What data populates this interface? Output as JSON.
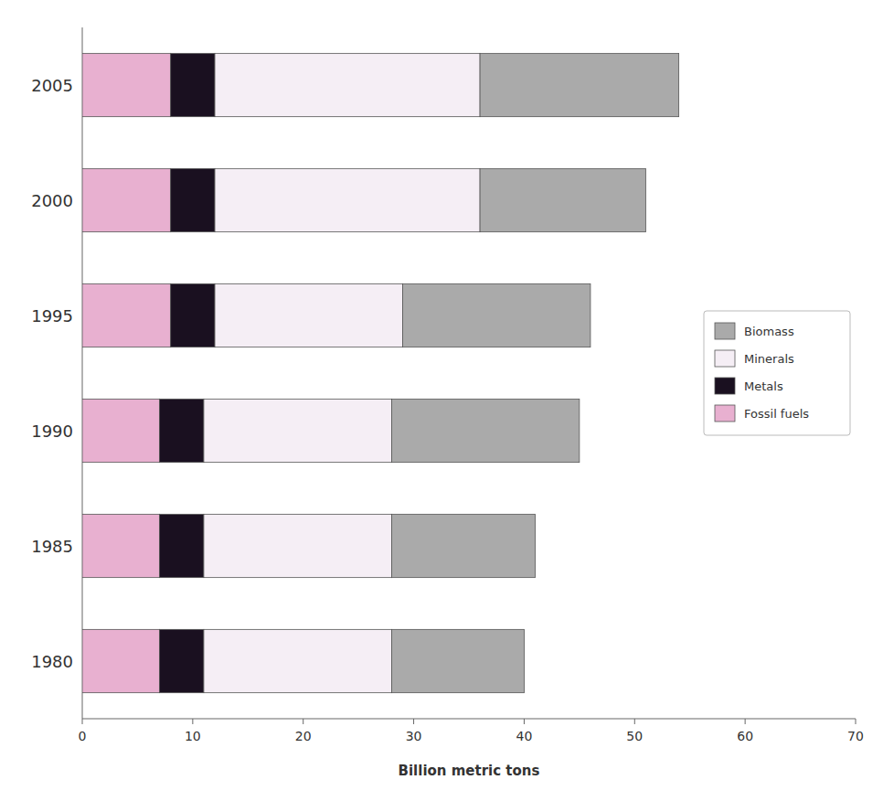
{
  "chart_data": {
    "type": "bar",
    "orientation": "horizontal",
    "stacked": true,
    "x_label": "Billion metric tons",
    "categories": [
      "1980",
      "1985",
      "1990",
      "1995",
      "2000",
      "2005"
    ],
    "series": [
      {
        "name": "Fossil fuels",
        "color": "#e8b0d0",
        "values": [
          7,
          7,
          7,
          8,
          8,
          8
        ]
      },
      {
        "name": "Metals",
        "color": "#1a1020",
        "values": [
          4,
          4,
          4,
          4,
          4,
          4
        ]
      },
      {
        "name": "Minerals",
        "color": "#f5eef5",
        "values": [
          17,
          17,
          17,
          17,
          24,
          24
        ]
      },
      {
        "name": "Biomass",
        "color": "#aaaaaa",
        "values": [
          12,
          13,
          17,
          17,
          15,
          18
        ]
      }
    ],
    "xlim": [
      0,
      70
    ],
    "xticks": [
      0,
      10,
      20,
      30,
      40,
      50,
      60,
      70
    ],
    "grid": false,
    "legend": "right"
  }
}
